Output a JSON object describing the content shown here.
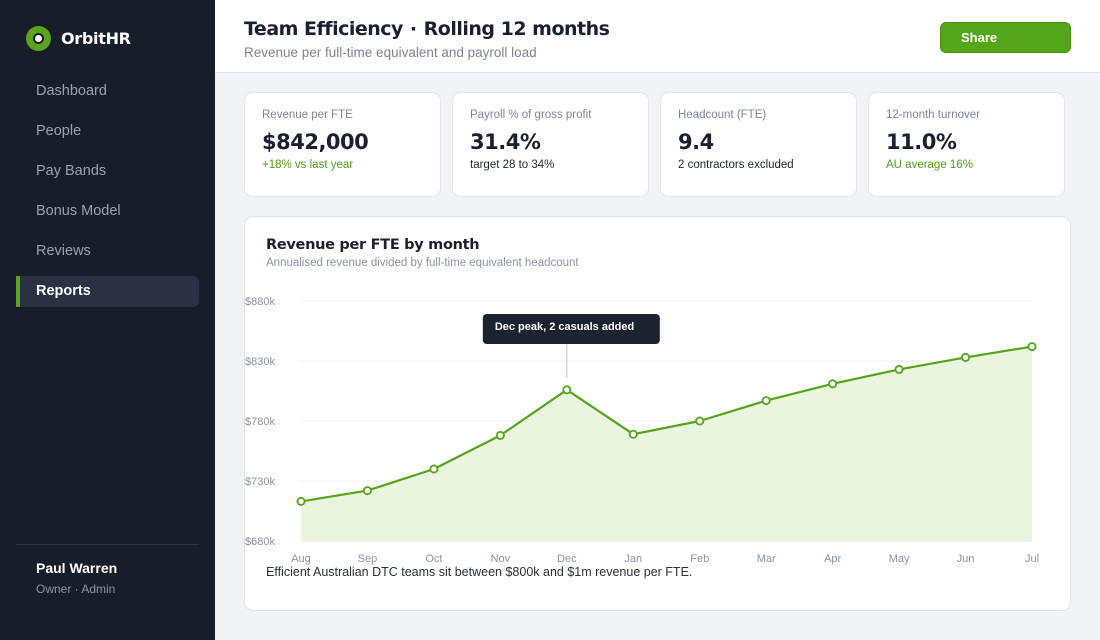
{
  "app": {
    "name": "OrbitHR",
    "accent": "#55a51a"
  },
  "sidebar": {
    "items": [
      {
        "label": "Dashboard"
      },
      {
        "label": "People"
      },
      {
        "label": "Pay Bands"
      },
      {
        "label": "Bonus Model"
      },
      {
        "label": "Reviews"
      },
      {
        "label": "Reports",
        "active": true
      }
    ],
    "user": {
      "name": "Paul Warren",
      "role": "Owner · Admin"
    }
  },
  "header": {
    "title_main": "Team Efficiency",
    "title_sep": "·",
    "title_period": "Rolling 12 months",
    "subtitle": "Revenue per full-time equivalent and payroll load",
    "share_label": "Share"
  },
  "kpis": [
    {
      "label": "Revenue per FTE",
      "value": "$842,000",
      "note": "+18% vs last year",
      "note_color": "green"
    },
    {
      "label": "Payroll % of gross profit",
      "value": "31.4%",
      "note": "target 28 to 34%",
      "note_color": "dark"
    },
    {
      "label": "Headcount (FTE)",
      "value": "9.4",
      "note": "2 contractors excluded",
      "note_color": "dark"
    },
    {
      "label": "12-month turnover",
      "value": "11.0%",
      "note": "AU average 16%",
      "note_color": "green"
    }
  ],
  "chart": {
    "title": "Revenue per FTE by month",
    "subtitle": "Annualised revenue divided by full-time equivalent headcount",
    "footnote": "Efficient Australian DTC teams sit between $800k and $1m revenue per FTE."
  },
  "chart_data": {
    "type": "area",
    "categories": [
      "Aug",
      "Sep",
      "Oct",
      "Nov",
      "Dec",
      "Jan",
      "Feb",
      "Mar",
      "Apr",
      "May",
      "Jun",
      "Jul"
    ],
    "series": [
      {
        "values": [
          713,
          722,
          740,
          768,
          806,
          769,
          780,
          797,
          811,
          823,
          833,
          842
        ]
      }
    ],
    "ylim": [
      680,
      880
    ],
    "yticks": [
      880,
      830,
      780,
      730,
      680
    ],
    "ytick_labels": [
      "$880k",
      "$830k",
      "$780k",
      "$730k",
      "$680k"
    ],
    "grid": true,
    "annotation": {
      "category": "Dec",
      "text": "Dec peak, 2 casuals added"
    },
    "line_color": "#55a51a",
    "fill_color": "#eaf5df"
  }
}
